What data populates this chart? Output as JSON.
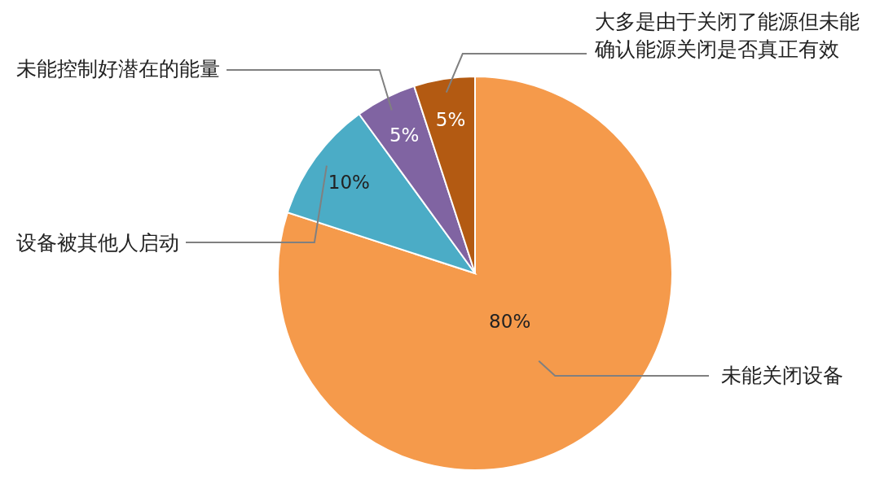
{
  "chart_data": {
    "type": "pie",
    "categories": [
      "未能关闭设备",
      "设备被其他人启动",
      "未能控制好潜在的能量",
      "大多是由于关闭了能源但未能确认能源关闭是否真正有效"
    ],
    "values": [
      80,
      10,
      5,
      5
    ],
    "colors": [
      "#f59a4b",
      "#4bacc6",
      "#8064a2",
      "#b35a12"
    ],
    "value_labels": [
      "80%",
      "10%",
      "5%",
      "5%"
    ],
    "legend": false
  }
}
